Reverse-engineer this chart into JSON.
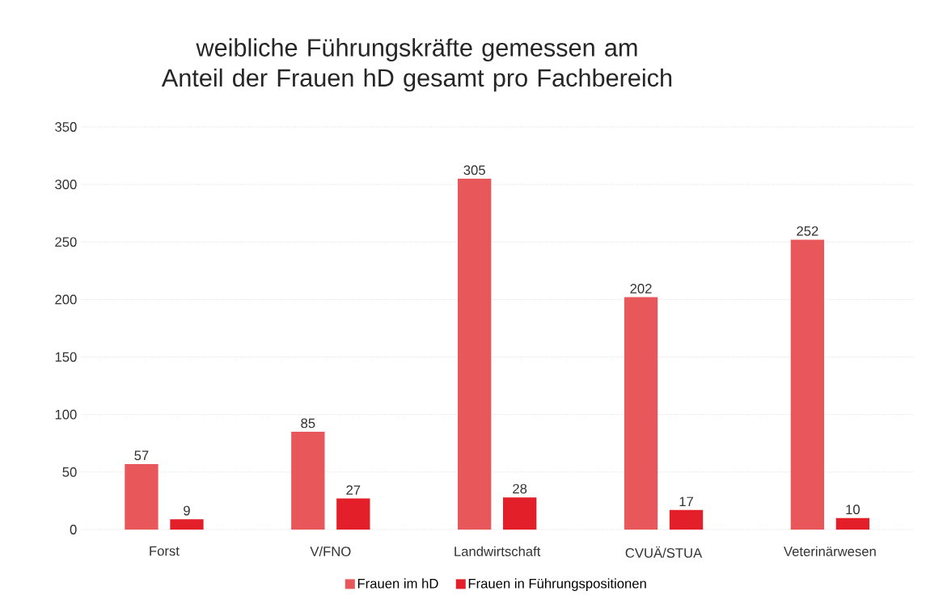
{
  "chart_data": {
    "type": "bar",
    "title": "weibliche Führungskräfte gemessen am Anteil der Frauen hD gesamt pro Fachbereich",
    "categories": [
      "Forst",
      "V/FNO",
      "Landwirtschaft",
      "CVUÄ/STUA",
      "Veterinärwesen"
    ],
    "series": [
      {
        "name": "Frauen im hD",
        "color": "#e8575a",
        "values": [
          57,
          85,
          305,
          202,
          252
        ]
      },
      {
        "name": "Frauen in Führungspositionen",
        "color": "#e3202a",
        "values": [
          9,
          27,
          28,
          17,
          10
        ]
      }
    ],
    "ylim": [
      0,
      350
    ],
    "yticks": [
      0,
      50,
      100,
      150,
      200,
      250,
      300,
      350
    ],
    "grid": "y",
    "legend": "bottom",
    "data_labels": true
  }
}
